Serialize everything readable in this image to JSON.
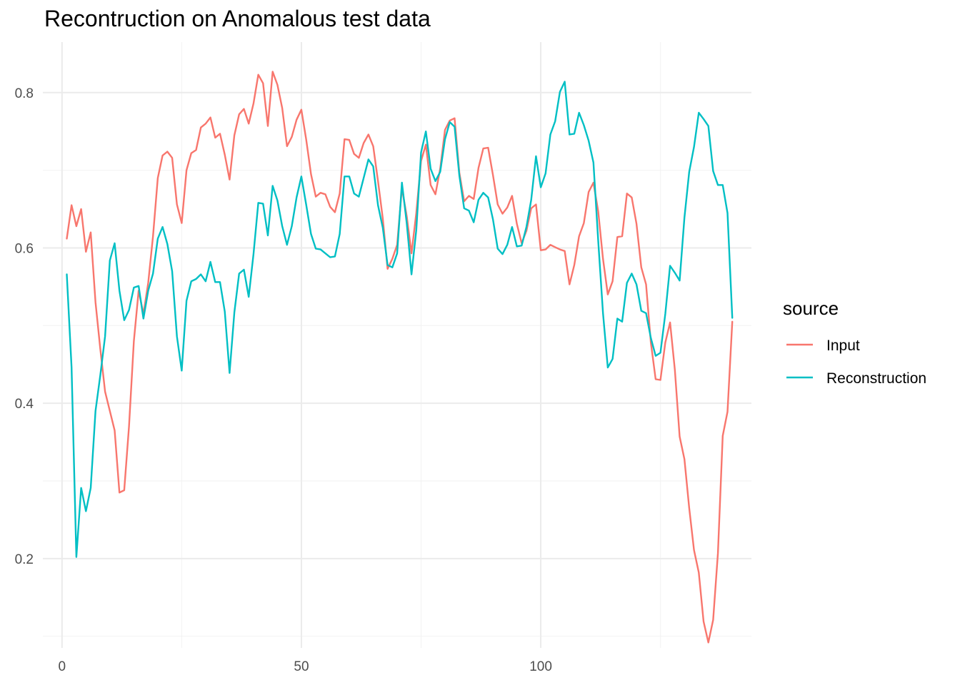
{
  "chart_data": {
    "type": "line",
    "title": "Recontruction on Anomalous test data",
    "xlabel": "",
    "ylabel": "",
    "xlim": [
      -4,
      144
    ],
    "ylim": [
      0.085,
      0.865
    ],
    "x_ticks": [
      0,
      50,
      100
    ],
    "x_tick_labels": [
      "0",
      "50",
      "100"
    ],
    "x_minor_ticks": [
      25,
      75,
      125
    ],
    "y_ticks": [
      0.2,
      0.4,
      0.6,
      0.8
    ],
    "y_tick_labels": [
      "0.2",
      "0.4",
      "0.6",
      "0.8"
    ],
    "y_minor_ticks": [
      0.1,
      0.3,
      0.5,
      0.7
    ],
    "grid": true,
    "legend": {
      "title": "source",
      "position": "right"
    },
    "x": [
      1,
      2,
      3,
      4,
      5,
      6,
      7,
      8,
      9,
      10,
      11,
      12,
      13,
      14,
      15,
      16,
      17,
      18,
      19,
      20,
      21,
      22,
      23,
      24,
      25,
      26,
      27,
      28,
      29,
      30,
      31,
      32,
      33,
      34,
      35,
      36,
      37,
      38,
      39,
      40,
      41,
      42,
      43,
      44,
      45,
      46,
      47,
      48,
      49,
      50,
      51,
      52,
      53,
      54,
      55,
      56,
      57,
      58,
      59,
      60,
      61,
      62,
      63,
      64,
      65,
      66,
      67,
      68,
      69,
      70,
      71,
      72,
      73,
      74,
      75,
      76,
      77,
      78,
      79,
      80,
      81,
      82,
      83,
      84,
      85,
      86,
      87,
      88,
      89,
      90,
      91,
      92,
      93,
      94,
      95,
      96,
      97,
      98,
      99,
      100,
      101,
      102,
      103,
      104,
      105,
      106,
      107,
      108,
      109,
      110,
      111,
      112,
      113,
      114,
      115,
      116,
      117,
      118,
      119,
      120,
      121,
      122,
      123,
      124,
      125,
      126,
      127,
      128,
      129,
      130,
      131,
      132,
      133,
      134,
      135,
      136,
      137,
      138,
      139,
      140
    ],
    "series": [
      {
        "name": "Input",
        "color": "#F8766D",
        "values": [
          0.612,
          0.655,
          0.628,
          0.65,
          0.595,
          0.62,
          0.53,
          0.47,
          0.415,
          0.39,
          0.365,
          0.285,
          0.288,
          0.37,
          0.48,
          0.545,
          0.515,
          0.555,
          0.615,
          0.69,
          0.719,
          0.724,
          0.716,
          0.656,
          0.632,
          0.7,
          0.722,
          0.726,
          0.755,
          0.76,
          0.768,
          0.742,
          0.747,
          0.72,
          0.688,
          0.745,
          0.772,
          0.779,
          0.76,
          0.786,
          0.823,
          0.812,
          0.757,
          0.827,
          0.81,
          0.78,
          0.731,
          0.743,
          0.765,
          0.778,
          0.74,
          0.695,
          0.666,
          0.671,
          0.669,
          0.653,
          0.646,
          0.67,
          0.74,
          0.739,
          0.721,
          0.716,
          0.735,
          0.746,
          0.731,
          0.686,
          0.638,
          0.573,
          0.586,
          0.604,
          0.677,
          0.641,
          0.593,
          0.645,
          0.712,
          0.733,
          0.681,
          0.669,
          0.702,
          0.752,
          0.764,
          0.767,
          0.697,
          0.66,
          0.667,
          0.663,
          0.703,
          0.728,
          0.729,
          0.694,
          0.656,
          0.644,
          0.652,
          0.667,
          0.631,
          0.606,
          0.622,
          0.651,
          0.656,
          0.597,
          0.598,
          0.604,
          0.601,
          0.598,
          0.596,
          0.553,
          0.578,
          0.615,
          0.632,
          0.672,
          0.684,
          0.647,
          0.586,
          0.54,
          0.557,
          0.614,
          0.615,
          0.67,
          0.665,
          0.631,
          0.575,
          0.553,
          0.478,
          0.431,
          0.43,
          0.478,
          0.504,
          0.443,
          0.357,
          0.328,
          0.265,
          0.211,
          0.182,
          0.119,
          0.092,
          0.121,
          0.207,
          0.358,
          0.389,
          0.505
        ]
      },
      {
        "name": "Reconstruction",
        "color": "#00BFC4",
        "values": [
          0.566,
          0.446,
          0.202,
          0.291,
          0.261,
          0.291,
          0.39,
          0.436,
          0.486,
          0.584,
          0.606,
          0.545,
          0.507,
          0.52,
          0.549,
          0.551,
          0.509,
          0.545,
          0.567,
          0.612,
          0.627,
          0.605,
          0.57,
          0.486,
          0.442,
          0.532,
          0.557,
          0.56,
          0.566,
          0.557,
          0.582,
          0.556,
          0.556,
          0.518,
          0.439,
          0.517,
          0.567,
          0.572,
          0.537,
          0.592,
          0.658,
          0.657,
          0.616,
          0.68,
          0.661,
          0.628,
          0.604,
          0.628,
          0.665,
          0.692,
          0.656,
          0.618,
          0.599,
          0.598,
          0.593,
          0.588,
          0.589,
          0.618,
          0.692,
          0.692,
          0.67,
          0.666,
          0.69,
          0.714,
          0.705,
          0.655,
          0.626,
          0.578,
          0.575,
          0.593,
          0.684,
          0.632,
          0.566,
          0.623,
          0.723,
          0.75,
          0.702,
          0.686,
          0.698,
          0.74,
          0.762,
          0.756,
          0.693,
          0.651,
          0.648,
          0.633,
          0.662,
          0.671,
          0.665,
          0.637,
          0.599,
          0.592,
          0.604,
          0.627,
          0.602,
          0.603,
          0.627,
          0.662,
          0.718,
          0.678,
          0.696,
          0.746,
          0.763,
          0.801,
          0.814,
          0.746,
          0.747,
          0.774,
          0.758,
          0.738,
          0.71,
          0.609,
          0.516,
          0.446,
          0.457,
          0.509,
          0.505,
          0.555,
          0.567,
          0.553,
          0.519,
          0.516,
          0.484,
          0.461,
          0.465,
          0.515,
          0.577,
          0.568,
          0.558,
          0.639,
          0.698,
          0.73,
          0.774,
          0.766,
          0.757,
          0.699,
          0.681,
          0.681,
          0.645,
          0.51
        ]
      }
    ]
  }
}
